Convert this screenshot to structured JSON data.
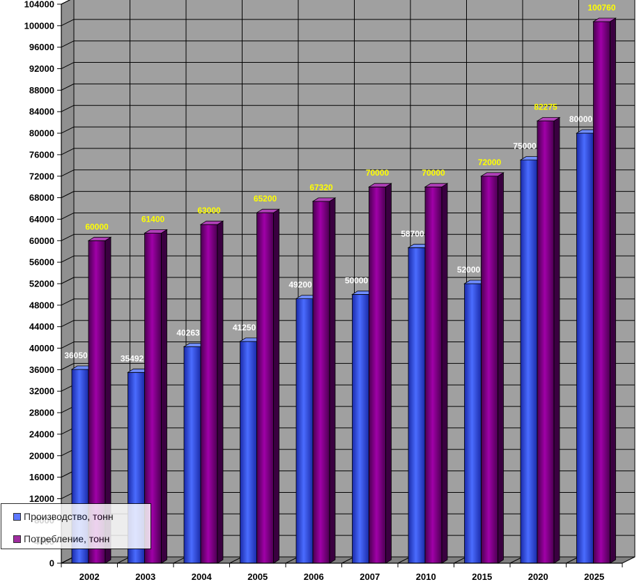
{
  "chart_data": {
    "type": "bar",
    "title": "",
    "xlabel": "",
    "ylabel": "",
    "categories": [
      "2002",
      "2003",
      "2004",
      "2005",
      "2006",
      "2007",
      "2010",
      "2015",
      "2020",
      "2025"
    ],
    "series": [
      {
        "name": "Производство, тонн",
        "color": "#3b5bff",
        "values": [
          36050,
          35492,
          40263,
          41250,
          49200,
          50000,
          58700,
          52000,
          75000,
          80000
        ]
      },
      {
        "name": "Потребление, тонн",
        "color": "#8b008b",
        "values": [
          60000,
          61400,
          63000,
          65200,
          67320,
          70000,
          70000,
          72000,
          82275,
          100760
        ]
      }
    ],
    "ylim": [
      0,
      104000
    ],
    "ytick_step": 4000,
    "yticks": [
      "0",
      "4000",
      "8000",
      "12000",
      "16000",
      "20000",
      "24000",
      "28000",
      "32000",
      "36000",
      "40000",
      "44000",
      "48000",
      "52000",
      "56000",
      "60000",
      "64000",
      "68000",
      "72000",
      "76000",
      "80000",
      "84000",
      "88000",
      "92000",
      "96000",
      "100000",
      "104000"
    ],
    "grid": true,
    "plot_background": "#a0a0a0",
    "legend_position": "bottom-left",
    "data_label_colors": {
      "production": "#ffffff",
      "consumption": "#ffff00"
    }
  }
}
